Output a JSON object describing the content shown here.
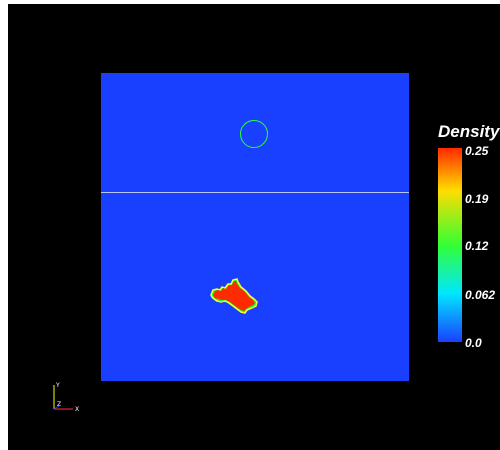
{
  "colorbar": {
    "title": "Density",
    "ticks": [
      "0.25",
      "0.19",
      "0.12",
      "0.062",
      "0.0"
    ],
    "range": [
      0.0,
      0.25
    ]
  },
  "axes": {
    "y_label": "Y",
    "z_label": "Z",
    "x_label": "X"
  },
  "colors": {
    "background": "#000000",
    "low": "#1a40ff",
    "high": "#ff2a00",
    "contour": "#2aff3a"
  }
}
